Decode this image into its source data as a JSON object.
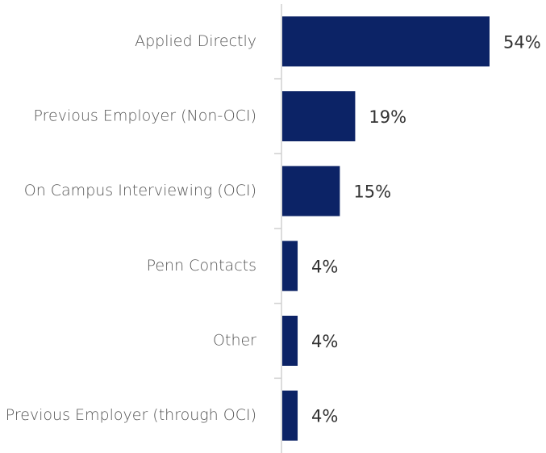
{
  "chart_data": {
    "type": "bar",
    "orientation": "horizontal",
    "categories": [
      "Applied Directly",
      "Previous Employer (Non-OCI)",
      "On Campus Interviewing (OCI)",
      "Penn Contacts",
      "Other",
      "Previous Employer (through OCI)"
    ],
    "values": [
      54,
      19,
      15,
      4,
      4,
      4
    ],
    "value_labels": [
      "54%",
      "19%",
      "15%",
      "4%",
      "4%",
      "4%"
    ],
    "color": "#0c2366"
  }
}
